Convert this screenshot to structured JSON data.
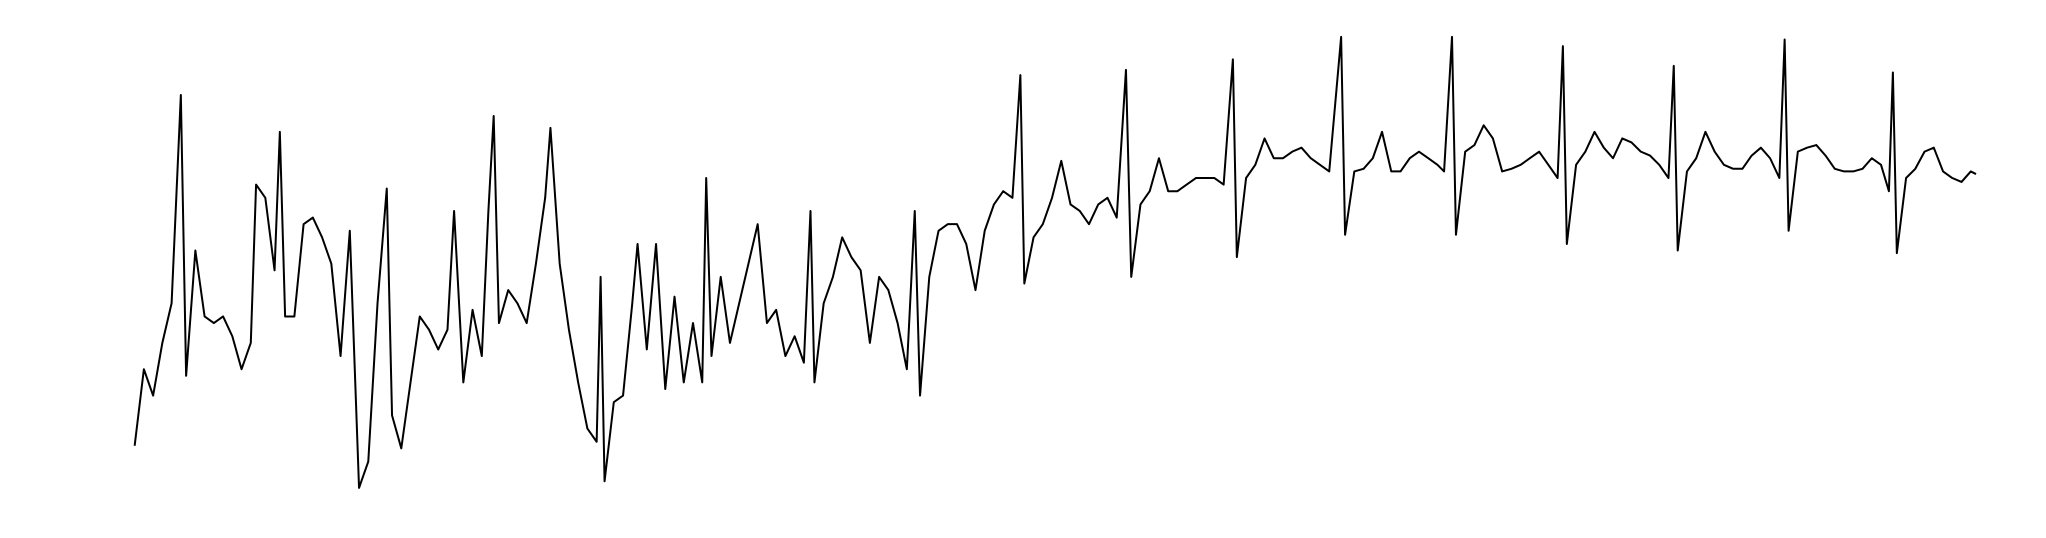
{
  "chart_data": {
    "type": "line",
    "color": "#000000",
    "xlim": [
      0,
      1550
    ],
    "ylim": [
      -8,
      400
    ],
    "x": [
      102,
      109,
      116,
      123,
      130,
      137,
      141,
      148,
      155,
      162,
      169,
      176,
      183,
      190,
      194,
      201,
      208,
      212,
      216,
      223,
      230,
      237,
      244,
      251,
      258,
      265,
      272,
      279,
      286,
      293,
      297,
      304,
      311,
      318,
      325,
      332,
      339,
      344,
      351,
      358,
      365,
      370,
      374,
      378,
      385,
      392,
      399,
      406,
      413,
      417,
      424,
      431,
      438,
      445,
      452,
      455,
      458,
      465,
      472,
      479,
      483,
      490,
      497,
      504,
      511,
      518,
      525,
      532,
      535,
      539,
      546,
      553,
      560,
      567,
      574,
      581,
      588,
      595,
      602,
      609,
      614,
      617,
      624,
      631,
      638,
      645,
      652,
      659,
      666,
      673,
      680,
      687,
      693,
      697,
      704,
      711,
      718,
      725,
      732,
      739,
      746,
      753,
      760,
      767,
      773,
      776,
      783,
      790,
      797,
      804,
      811,
      818,
      825,
      832,
      839,
      846,
      853,
      857,
      864,
      871,
      878,
      885,
      892,
      899,
      906,
      913,
      920,
      927,
      934,
      937,
      944,
      951,
      958,
      965,
      972,
      979,
      986,
      993,
      1000,
      1007,
      1016,
      1019,
      1026,
      1033,
      1040,
      1047,
      1054,
      1061,
      1068,
      1075,
      1082,
      1089,
      1094,
      1100,
      1103,
      1110,
      1117,
      1124,
      1131,
      1138,
      1145,
      1152,
      1159,
      1166,
      1173,
      1180,
      1184,
      1187,
      1194,
      1201,
      1208,
      1215,
      1222,
      1229,
      1236,
      1243,
      1250,
      1257,
      1264,
      1268,
      1271,
      1278,
      1285,
      1292,
      1299,
      1306,
      1313,
      1320,
      1327,
      1334,
      1341,
      1348,
      1352,
      1355,
      1362,
      1369,
      1376,
      1383,
      1390,
      1397,
      1404,
      1411,
      1418,
      1425,
      1431,
      1434,
      1437,
      1444,
      1451,
      1458,
      1465,
      1472,
      1479,
      1486,
      1493,
      1497
    ],
    "values": [
      62,
      120,
      100,
      140,
      170,
      328,
      115,
      210,
      160,
      155,
      160,
      145,
      120,
      140,
      260,
      250,
      195,
      300,
      160,
      160,
      230,
      235,
      220,
      200,
      130,
      225,
      30,
      50,
      170,
      257,
      85,
      60,
      110,
      160,
      150,
      135,
      150,
      240,
      110,
      165,
      130,
      240,
      312,
      155,
      180,
      170,
      155,
      200,
      250,
      303,
      200,
      150,
      110,
      75,
      65,
      190,
      35,
      95,
      100,
      170,
      215,
      135,
      215,
      105,
      175,
      110,
      155,
      110,
      265,
      130,
      190,
      140,
      170,
      200,
      230,
      155,
      165,
      130,
      145,
      125,
      240,
      110,
      170,
      190,
      220,
      205,
      195,
      140,
      190,
      180,
      155,
      120,
      240,
      100,
      190,
      225,
      230,
      230,
      215,
      180,
      225,
      245,
      255,
      250,
      343,
      185,
      220,
      230,
      250,
      278,
      245,
      240,
      230,
      245,
      250,
      235,
      347,
      190,
      245,
      255,
      280,
      255,
      255,
      260,
      265,
      265,
      265,
      260,
      355,
      205,
      265,
      275,
      295,
      280,
      280,
      285,
      288,
      280,
      275,
      270,
      372,
      222,
      270,
      272,
      280,
      300,
      270,
      270,
      280,
      285,
      280,
      275,
      270,
      372,
      222,
      285,
      290,
      305,
      295,
      270,
      272,
      275,
      280,
      285,
      275,
      265,
      365,
      215,
      275,
      285,
      300,
      288,
      280,
      295,
      292,
      285,
      282,
      275,
      265,
      350,
      210,
      270,
      280,
      300,
      285,
      275,
      272,
      272,
      282,
      288,
      280,
      265,
      370,
      225,
      285,
      288,
      290,
      282,
      272,
      270,
      270,
      272,
      280,
      275,
      255,
      345,
      208,
      265,
      272,
      285,
      288,
      270,
      265,
      262,
      270,
      268
    ]
  }
}
